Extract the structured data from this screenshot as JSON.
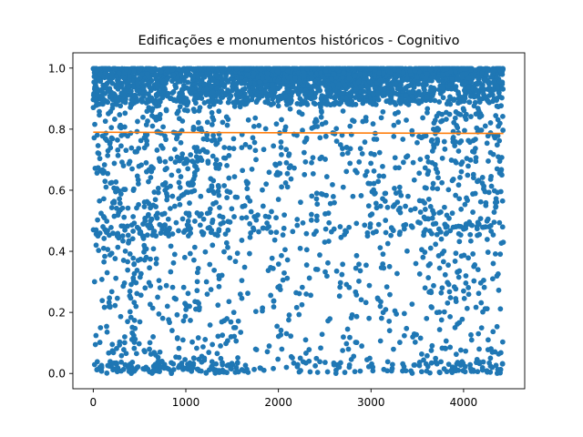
{
  "chart_data": {
    "type": "scatter",
    "title": "Edificações e monumentos históricos - Cognitivo",
    "xlabel": "",
    "ylabel": "",
    "xlim": [
      -220,
      4660
    ],
    "ylim": [
      -0.05,
      1.05
    ],
    "xticks": [
      0,
      1000,
      2000,
      3000,
      4000
    ],
    "yticks": [
      0.0,
      0.2,
      0.4,
      0.6,
      0.8,
      1.0
    ],
    "xtick_labels": [
      "0",
      "1000",
      "2000",
      "3000",
      "4000"
    ],
    "ytick_labels": [
      "0.0",
      "0.2",
      "0.4",
      "0.6",
      "0.8",
      "1.0"
    ],
    "grid": false,
    "series": [
      {
        "kind": "points",
        "color": "#1f77b4",
        "n_points": 4430,
        "x_range": [
          0,
          4430
        ],
        "density_profile": [
          {
            "x": [
              0,
              1500
            ],
            "dense_top_fraction": 0.45,
            "spread_fraction": 0.55
          },
          {
            "x": [
              1500,
              3550
            ],
            "dense_top_fraction": 0.75,
            "spread_fraction": 0.25
          },
          {
            "x": [
              3550,
              4430
            ],
            "dense_top_fraction": 0.5,
            "spread_fraction": 0.5
          }
        ],
        "points_sample": [
          [
            30,
            0.99
          ],
          [
            60,
            0.72
          ],
          [
            90,
            0.02
          ],
          [
            120,
            0.51
          ],
          [
            150,
            0.33
          ],
          [
            210,
            0.88
          ],
          [
            260,
            0.45
          ],
          [
            340,
            0.12
          ],
          [
            420,
            0.67
          ],
          [
            480,
            0.95
          ],
          [
            560,
            0.28
          ],
          [
            640,
            0.81
          ],
          [
            720,
            0.07
          ],
          [
            800,
            0.58
          ],
          [
            880,
            0.39
          ],
          [
            960,
            0.93
          ],
          [
            1040,
            0.22
          ],
          [
            1120,
            0.74
          ],
          [
            1200,
            0.05
          ],
          [
            1280,
            0.61
          ],
          [
            1360,
            0.31
          ],
          [
            1440,
            0.84
          ],
          [
            1520,
            0.15
          ],
          [
            1600,
            0.97
          ],
          [
            1700,
            0.46
          ],
          [
            1800,
            0.91
          ],
          [
            1900,
            0.09
          ],
          [
            2000,
            0.57
          ],
          [
            2100,
            0.99
          ],
          [
            2200,
            0.78
          ],
          [
            2300,
            0.26
          ],
          [
            2400,
            0.94
          ],
          [
            2500,
            0.43
          ],
          [
            2600,
            0.98
          ],
          [
            2700,
            0.61
          ],
          [
            2800,
            0.88
          ],
          [
            2900,
            0.09
          ],
          [
            3000,
            0.72
          ],
          [
            3100,
            0.96
          ],
          [
            3200,
            0.35
          ],
          [
            3300,
            0.99
          ],
          [
            3400,
            0.58
          ],
          [
            3500,
            0.97
          ],
          [
            3600,
            0.18
          ],
          [
            3680,
            0.82
          ],
          [
            3760,
            0.44
          ],
          [
            3840,
            0.03
          ],
          [
            3920,
            0.69
          ],
          [
            4000,
            0.27
          ],
          [
            4080,
            0.91
          ],
          [
            4160,
            0.13
          ],
          [
            4240,
            0.55
          ],
          [
            4320,
            0.36
          ],
          [
            4400,
            0.99
          ]
        ]
      },
      {
        "kind": "line",
        "color": "#ff7f0e",
        "x": [
          0,
          4430
        ],
        "y": [
          0.79,
          0.786
        ]
      }
    ]
  }
}
